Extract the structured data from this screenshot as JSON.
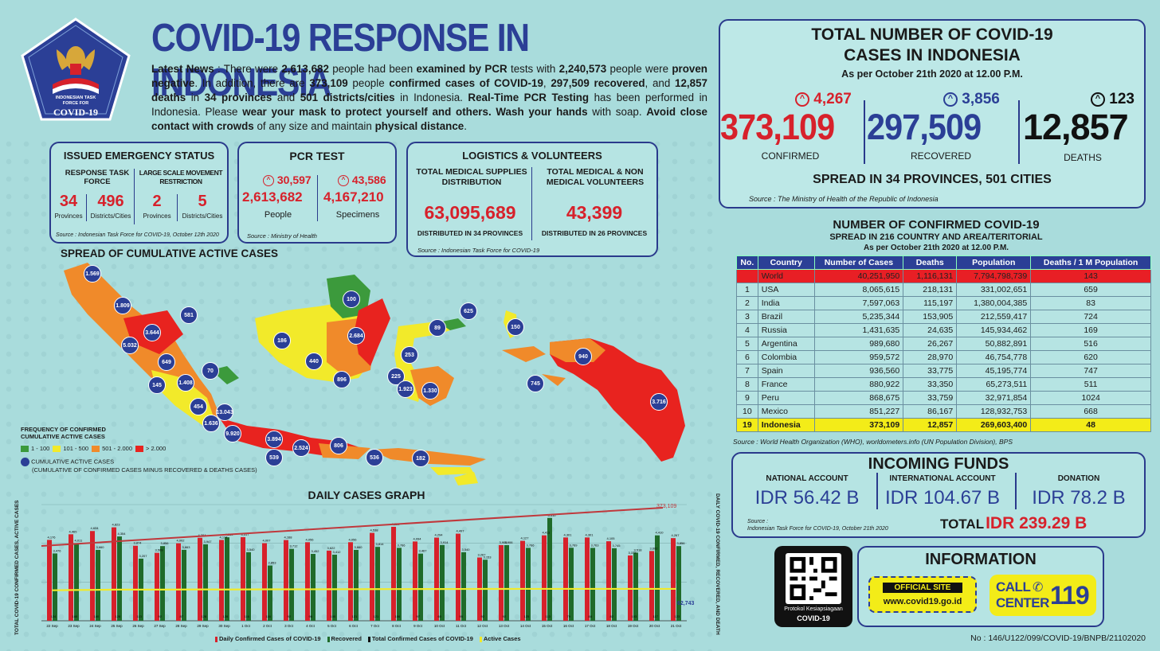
{
  "header": {
    "title": "COVID-19 RESPONSE IN INDONESIA",
    "logo_line1": "INDONESIAN TASK",
    "logo_line2": "FORCE FOR",
    "logo_line3": "COVID-19"
  },
  "news": {
    "label": "Latest News",
    "t1": " : There were ",
    "examined": "2,613,682",
    "t2": " people had been ",
    "t3": "examined by PCR",
    "t4": " tests with ",
    "negative": "2,240,573",
    "t5": " people were ",
    "t6": "proven negative",
    "t7": ". In addition, there are ",
    "confirmed": "373,109",
    "t8": " people ",
    "t9": "confirmed cases of COVID-19",
    "t10": ", ",
    "recovered": "297,509",
    "t11": "recovered",
    "t12": ", and ",
    "deaths": "12,857",
    "t13": "deaths",
    "t14": " in ",
    "provinces": "34 provinces",
    "t15": " and ",
    "cities": "501 districts/cities",
    "t16": " in Indonesia. ",
    "t17": "Real-Time PCR Testing",
    "t18": " has been performed in Indonesia. Please ",
    "t19": "wear your mask to protect yourself and others. Wash your hands",
    "t20": " with soap. ",
    "t21": "Avoid close contact with crowds",
    "t22": " of any size and maintain ",
    "t23": "physical distance",
    "t24": "."
  },
  "emergency": {
    "title": "ISSUED EMERGENCY STATUS",
    "col1_title": "RESPONSE TASK FORCE",
    "col2_title": "LARGE SCALE MOVEMENT RESTRICTION",
    "v1": "34",
    "l1": "Provinces",
    "v2": "496",
    "l2": "Districts/Cities",
    "v3": "2",
    "l3": "Provinces",
    "v4": "5",
    "l4": "Districts/Cities",
    "source": "Source : Indonesian Task Force for COVID-19, October 12th 2020"
  },
  "pcr": {
    "title": "PCR TEST",
    "inc1": "30,597",
    "v1": "2,613,682",
    "l1": "People",
    "inc2": "43,586",
    "v2": "4,167,210",
    "l2": "Specimens",
    "source": "Source : Ministry of Health"
  },
  "logistics": {
    "title": "LOGISTICS & VOLUNTEERS",
    "c1_title": "TOTAL MEDICAL SUPPLIES DISTRIBUTION",
    "c1_value": "63,095,689",
    "c1_note": "DISTRIBUTED IN 34 PROVINCES",
    "c2_title": "TOTAL MEDICAL & NON MEDICAL VOLUNTEERS",
    "c2_value": "43,399",
    "c2_note": "DISTRIBUTED IN 26 PROVINCES",
    "source": "Source : Indonesian Task Force for COVID-19"
  },
  "totals": {
    "title1": "TOTAL NUMBER OF COVID-19",
    "title2": "CASES IN INDONESIA",
    "asof": "As per October 21th 2020 at 12.00 P.M.",
    "confirmed_inc": "4,267",
    "confirmed": "373,109",
    "confirmed_label": "CONFIRMED",
    "recovered_inc": "3,856",
    "recovered": "297,509",
    "recovered_label": "RECOVERED",
    "deaths_inc": "123",
    "deaths": "12,857",
    "deaths_label": "DEATHS",
    "spread": "SPREAD IN 34 PROVINCES, 501 CITIES",
    "source": "Source : The Ministry of Health of the Republic of Indonesia",
    "colors": {
      "confirmed": "#d7212b",
      "recovered": "#2b3f96",
      "deaths": "#111111"
    }
  },
  "world": {
    "title": "NUMBER OF CONFIRMED COVID-19",
    "subtitle": "SPREAD IN 216 COUNTRY AND AREA/TERITORIAL",
    "asof": "As per October 21th 2020 at 12.00 P.M.",
    "headers": [
      "No.",
      "Country",
      "Number of Cases",
      "Deaths",
      "Population",
      "Deaths / 1 M Population"
    ],
    "rows": [
      [
        "",
        "World",
        "40,251,950",
        "1,116,131",
        "7,794,798,739",
        "143"
      ],
      [
        "1",
        "USA",
        "8,065,615",
        "218,131",
        "331,002,651",
        "659"
      ],
      [
        "2",
        "India",
        "7,597,063",
        "115,197",
        "1,380,004,385",
        "83"
      ],
      [
        "3",
        "Brazil",
        "5,235,344",
        "153,905",
        "212,559,417",
        "724"
      ],
      [
        "4",
        "Russia",
        "1,431,635",
        "24,635",
        "145,934,462",
        "169"
      ],
      [
        "5",
        "Argentina",
        "989,680",
        "26,267",
        "50,882,891",
        "516"
      ],
      [
        "6",
        "Colombia",
        "959,572",
        "28,970",
        "46,754,778",
        "620"
      ],
      [
        "7",
        "Spain",
        "936,560",
        "33,775",
        "45,195,774",
        "747"
      ],
      [
        "8",
        "France",
        "880,922",
        "33,350",
        "65,273,511",
        "511"
      ],
      [
        "9",
        "Peru",
        "868,675",
        "33,759",
        "32,971,854",
        "1024"
      ],
      [
        "10",
        "Mexico",
        "851,227",
        "86,167",
        "128,932,753",
        "668"
      ],
      [
        "19",
        "Indonesia",
        "373,109",
        "12,857",
        "269,603,400",
        "48"
      ]
    ],
    "source": "Source : World Health Organization (WHO), worldometers.info (UN Population Division), BPS"
  },
  "funds": {
    "title": "INCOMING FUNDS",
    "c1_label": "NATIONAL ACCOUNT",
    "c1_value": "IDR 56.42 B",
    "c2_label": "INTERNATIONAL ACCOUNT",
    "c2_value": "IDR 104.67 B",
    "c3_label": "DONATION",
    "c3_value": "IDR 78.2 B",
    "source1": "Source :",
    "source2": "Indonesian Task Force for COVID-19, October 21th 2020",
    "total_label": "TOTAL",
    "total_value": "IDR 239.29 B"
  },
  "info": {
    "qr_line1": "Protokol Kesiapsiagaan",
    "qr_line2": "COVID-19",
    "title": "INFORMATION",
    "site_label": "OFFICIAL SITE",
    "site_url": "www.covid19.go.id",
    "call1": "CALL",
    "call2": "CENTER",
    "call_num": "119"
  },
  "map": {
    "title": "SPREAD OF CUMULATIVE ACTIVE CASES",
    "legend_title1": "FREQUENCY OF CONFIRMED",
    "legend_title2": "CUMULATIVE ACTIVE CASES",
    "legend": [
      {
        "label": "1 - 100",
        "color": "#3c9a3c"
      },
      {
        "label": "101 - 500",
        "color": "#f2ea2a"
      },
      {
        "label": "501 - 2.000",
        "color": "#f08a2a"
      },
      {
        "label": "> 2.000",
        "color": "#e8231f"
      }
    ],
    "circle_label1": "CUMULATIVE ACTIVE CASES",
    "circle_label2": "(CUMULATIVE OF CONFIRMED CASES MINUS RECOVERED & DEATHS CASES)",
    "markers": [
      "1.569",
      "1.809",
      "3.644",
      "5.032",
      "581",
      "649",
      "70",
      "145",
      "1.408",
      "454",
      "13.043",
      "1.636",
      "9.920",
      "3.894",
      "2.524",
      "539",
      "806",
      "536",
      "182",
      "186",
      "440",
      "896",
      "100",
      "2.684",
      "625",
      "89",
      "253",
      "225",
      "1.923",
      "1.330",
      "150",
      "940",
      "745",
      "3.716"
    ]
  },
  "chart_data": {
    "type": "bar",
    "title": "DAILY CASES GRAPH",
    "ylabel_left": "TOTAL COVID-19 CONFIRMED CASES, ACTIVE CASES",
    "ylabel_right": "DAILY COVID-19 CONFIRMED, RECOVERED, AND DEATH",
    "categories": [
      "22 Sep",
      "23 Sep",
      "24 Sep",
      "25 Sep",
      "26 Sep",
      "27 Sep",
      "28 Sep",
      "29 Sep",
      "30 Sep",
      "1 Oct",
      "2 Oct",
      "3 Oct",
      "4 Oct",
      "5 Oct",
      "6 Oct",
      "7 Oct",
      "8 Oct",
      "9 Oct",
      "10 Oct",
      "11 Oct",
      "12 Oct",
      "13 Oct",
      "14 Oct",
      "15 Oct",
      "16 Oct",
      "17 Oct",
      "18 Oct",
      "19 Oct",
      "20 Oct",
      "21 Oct"
    ],
    "series": [
      {
        "name": "Daily Confirmed Cases of COVID-19",
        "color": "#d7212b",
        "values": [
          4176,
          4465,
          4634,
          4823,
          3874,
          3509,
          4002,
          4284,
          4174,
          4317,
          4007,
          4168,
          4056,
          3622,
          4056,
          4538,
          4850,
          4094,
          4294,
          4497,
          3267,
          3906,
          4127,
          4411,
          4301,
          4301,
          4105,
          3373,
          3602,
          4267
        ]
      },
      {
        "name": "Recovered",
        "color": "#1f6b2a",
        "values": [
          3476,
          4011,
          3660,
          4354,
          3207,
          3856,
          3663,
          3947,
          4310,
          3540,
          2853,
          3712,
          3452,
          3412,
          3660,
          3814,
          3766,
          3467,
          3914,
          3540,
          3153,
          3906,
          3766,
          5310,
          3769,
          3763,
          3745,
          3518,
          4410,
          3856
        ]
      },
      {
        "name": "Daily Deaths",
        "color": "#d7212b",
        "values": [
          124,
          160,
          140,
          128,
          113,
          92,
          87,
          128,
          128,
          116,
          116,
          92,
          96,
          100,
          121,
          121,
          106,
          97,
          60,
          95,
          92,
          92,
          125,
          113,
          79,
          84,
          82,
          103,
          117,
          123
        ]
      },
      {
        "name": "Active Cases",
        "color": "#f2ea2a",
        "values": [
          60000,
          60500,
          60800,
          61200,
          61300,
          61300,
          61500,
          61600,
          61500,
          61700,
          61800,
          61800,
          61900,
          62000,
          62100,
          62200,
          62300,
          62400,
          62400,
          62500,
          62600,
          62600,
          62700,
          62700,
          62700,
          62700,
          62700,
          62700,
          62743,
          62743
        ]
      }
    ],
    "annotation_total": "373,109",
    "annotation_active": "62,743",
    "legend": [
      "Daily Confirmed Cases of COVID-19",
      "Recovered",
      "Total Confirmed Cases of COVID-19",
      "Active Cases"
    ],
    "ylim": [
      0,
      6000
    ]
  },
  "footer": {
    "ref": "No : 146/U122/099/COVID-19/BNPB/21102020"
  }
}
